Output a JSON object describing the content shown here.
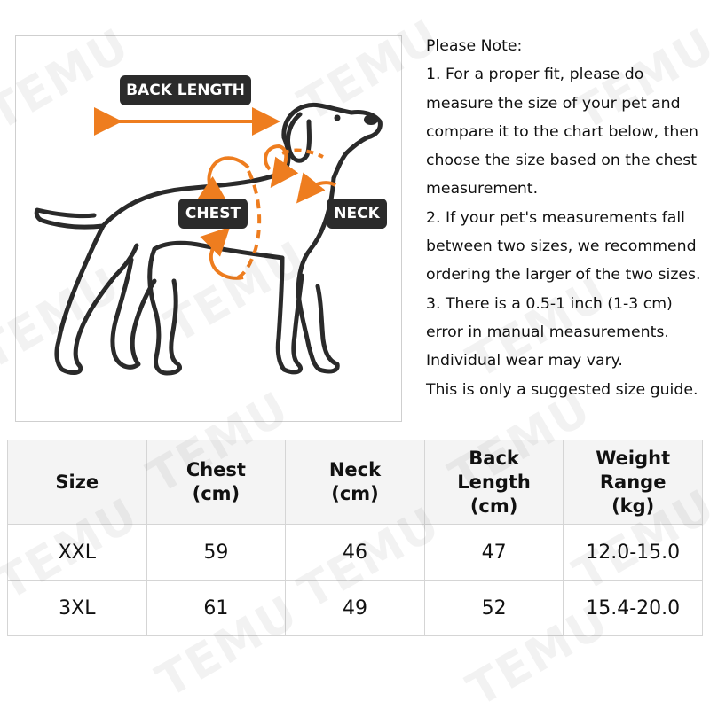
{
  "figure": {
    "labels": {
      "back_length": "BACK LENGTH",
      "chest": "CHEST",
      "neck": "NECK"
    },
    "accent_color": "#ee7d1f",
    "label_bg_color": "#2b2b2b",
    "icon": "dog-silhouette"
  },
  "note": {
    "lines": [
      "Please Note:",
      "1. For a proper fit, please do",
      "measure the size of your pet and",
      "compare it to the chart below, then",
      "choose the size based on the chest",
      "measurement.",
      "2. If your pet's measurements fall",
      "between two sizes, we recommend",
      "ordering the larger of the two sizes.",
      "3. There is a 0.5-1 inch (1-3 cm)",
      "error in manual measurements.",
      "Individual wear may vary.",
      "This is only a suggested size guide."
    ]
  },
  "table": {
    "headers": [
      [
        "Size"
      ],
      [
        "Chest",
        "(cm)"
      ],
      [
        "Neck",
        "(cm)"
      ],
      [
        "Back",
        "Length",
        "(cm)"
      ],
      [
        "Weight",
        "Range",
        "(kg)"
      ]
    ],
    "rows": [
      [
        "XXL",
        "59",
        "46",
        "47",
        "12.0-15.0"
      ],
      [
        "3XL",
        "61",
        "49",
        "52",
        "15.4-20.0"
      ]
    ]
  },
  "watermark": "TEMU"
}
